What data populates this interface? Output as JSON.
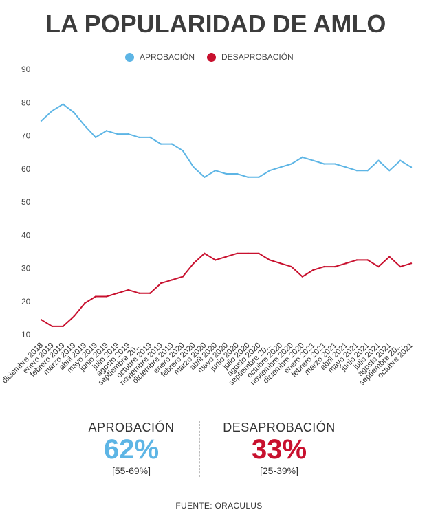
{
  "title": "LA POPULARIDAD DE AMLO",
  "legend": {
    "approval_label": "APROBACIÓN",
    "disapproval_label": "DESAPROBACIÓN"
  },
  "colors": {
    "approval": "#5db5e5",
    "disapproval": "#c8102e",
    "text": "#333333"
  },
  "summary": {
    "approval": {
      "label": "APROBACIÓN",
      "value": "62%",
      "range": "[55-69%]"
    },
    "disapproval": {
      "label": "DESAPROBACIÓN",
      "value": "33%",
      "range": "[25-39%]"
    }
  },
  "source": "FUENTE: ORACULUS",
  "chart_data": {
    "type": "line",
    "title": "LA POPULARIDAD DE AMLO",
    "xlabel": "",
    "ylabel": "",
    "ylim": [
      10,
      90
    ],
    "yticks": [
      10,
      20,
      30,
      40,
      50,
      60,
      70,
      80,
      90
    ],
    "grid": false,
    "legend_position": "top-center",
    "categories": [
      "diciembre 2018",
      "enero 2019",
      "febrero 2019",
      "marzo 2019",
      "abril 2019",
      "mayo 2019",
      "junio 2019",
      "julio 2019",
      "agosto 2019",
      "septiembre 20...",
      "octubre 2019",
      "noviembre 2019",
      "diciembre 2019",
      "enero 2020",
      "febrero 2020",
      "marzo 2020",
      "abril 2020",
      "mayo 2020",
      "junio 2020",
      "julio 2020",
      "agosto 2020",
      "septiembre 20...",
      "octubre 2020",
      "noviembre 2020",
      "diciembre 2020",
      "enero 2021",
      "febrero 2021",
      "marzo 2021",
      "abril 2021",
      "mayo 2021",
      "junio 2021",
      "julio 2021",
      "agosto 2021",
      "septiembre 20...",
      "octubre 2021"
    ],
    "series": [
      {
        "name": "APROBACIÓN",
        "color": "#5db5e5",
        "values": [
          74.5,
          77.5,
          79.5,
          77,
          73,
          69.5,
          71.5,
          70.5,
          70.5,
          69.5,
          69.5,
          67.5,
          67.5,
          65.5,
          60.5,
          57.5,
          59.5,
          58.5,
          58.5,
          57.5,
          57.5,
          59.5,
          60.5,
          61.5,
          63.5,
          62.5,
          61.5,
          61.5,
          60.5,
          59.5,
          59.5,
          62.5,
          59.5,
          62.5,
          60.5
        ]
      },
      {
        "name": "DESAPROBACIÓN",
        "color": "#c8102e",
        "values": [
          14.5,
          12.5,
          12.5,
          15.5,
          19.5,
          21.5,
          21.5,
          22.5,
          23.5,
          22.5,
          22.5,
          25.5,
          26.5,
          27.5,
          31.5,
          34.5,
          32.5,
          33.5,
          34.5,
          34.5,
          34.5,
          32.5,
          31.5,
          30.5,
          27.5,
          29.5,
          30.5,
          30.5,
          31.5,
          32.5,
          32.5,
          30.5,
          33.5,
          30.5,
          31.5
        ]
      }
    ]
  }
}
